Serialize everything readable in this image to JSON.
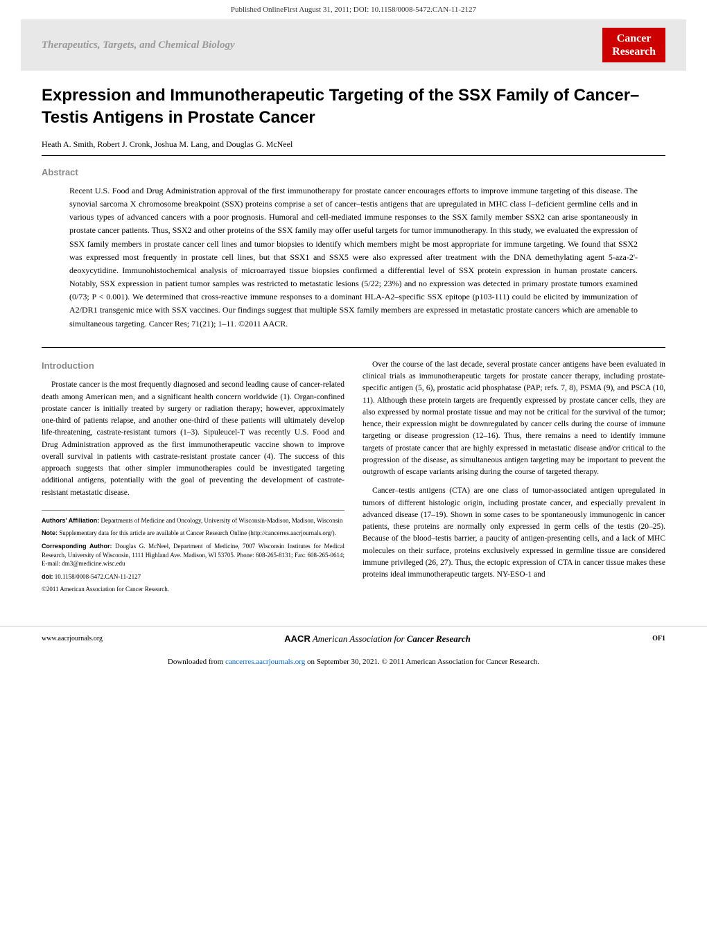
{
  "header": {
    "published_line": "Published OnlineFirst August 31, 2011; DOI: 10.1158/0008-5472.CAN-11-2127"
  },
  "banner": {
    "section": "Therapeutics, Targets, and Chemical Biology",
    "journal_line1": "Cancer",
    "journal_line2": "Research"
  },
  "article": {
    "title": "Expression and Immunotherapeutic Targeting of the SSX Family of Cancer–Testis Antigens in Prostate Cancer",
    "authors": "Heath A. Smith, Robert J. Cronk, Joshua M. Lang, and Douglas G. McNeel",
    "abstract_label": "Abstract",
    "abstract": "Recent U.S. Food and Drug Administration approval of the first immunotherapy for prostate cancer encourages efforts to improve immune targeting of this disease. The synovial sarcoma X chromosome breakpoint (SSX) proteins comprise a set of cancer–testis antigens that are upregulated in MHC class I–deficient germline cells and in various types of advanced cancers with a poor prognosis. Humoral and cell-mediated immune responses to the SSX family member SSX2 can arise spontaneously in prostate cancer patients. Thus, SSX2 and other proteins of the SSX family may offer useful targets for tumor immunotherapy. In this study, we evaluated the expression of SSX family members in prostate cancer cell lines and tumor biopsies to identify which members might be most appropriate for immune targeting. We found that SSX2 was expressed most frequently in prostate cell lines, but that SSX1 and SSX5 were also expressed after treatment with the DNA demethylating agent 5-aza-2'-deoxycytidine. Immunohistochemical analysis of microarrayed tissue biopsies confirmed a differential level of SSX protein expression in human prostate cancers. Notably, SSX expression in patient tumor samples was restricted to metastatic lesions (5/22; 23%) and no expression was detected in primary prostate tumors examined (0/73; P < 0.001). We determined that cross-reactive immune responses to a dominant HLA-A2–specific SSX epitope (p103-111) could be elicited by immunization of A2/DR1 transgenic mice with SSX vaccines. Our findings suggest that multiple SSX family members are expressed in metastatic prostate cancers which are amenable to simultaneous targeting. Cancer Res; 71(21); 1–11. ©2011 AACR.",
    "intro_label": "Introduction",
    "col1_p1": "Prostate cancer is the most frequently diagnosed and second leading cause of cancer-related death among American men, and a significant health concern worldwide (1). Organ-confined prostate cancer is initially treated by surgery or radiation therapy; however, approximately one-third of patients relapse, and another one-third of these patients will ultimately develop life-threatening, castrate-resistant tumors (1–3). Sipuleucel-T was recently U.S. Food and Drug Administration approved as the first immunotherapeutic vaccine shown to improve overall survival in patients with castrate-resistant prostate cancer (4). The success of this approach suggests that other simpler immunotherapies could be investigated targeting additional antigens, potentially with the goal of preventing the development of castrate-resistant metastatic disease.",
    "col2_p1": "Over the course of the last decade, several prostate cancer antigens have been evaluated in clinical trials as immunotherapeutic targets for prostate cancer therapy, including prostate-specific antigen (5, 6), prostatic acid phosphatase (PAP; refs. 7, 8), PSMA (9), and PSCA (10, 11). Although these protein targets are frequently expressed by prostate cancer cells, they are also expressed by normal prostate tissue and may not be critical for the survival of the tumor; hence, their expression might be downregulated by cancer cells during the course of immune targeting or disease progression (12–16). Thus, there remains a need to identify immune targets of prostate cancer that are highly expressed in metastatic disease and/or critical to the progression of the disease, as simultaneous antigen targeting may be important to prevent the outgrowth of escape variants arising during the course of targeted therapy.",
    "col2_p2": "Cancer–testis antigens (CTA) are one class of tumor-associated antigen upregulated in tumors of different histologic origin, including prostate cancer, and especially prevalent in advanced disease (17–19). Shown in some cases to be spontaneously immunogenic in cancer patients, these proteins are normally only expressed in germ cells of the testis (20–25). Because of the blood–testis barrier, a paucity of antigen-presenting cells, and a lack of MHC molecules on their surface, proteins exclusively expressed in germline tissue are considered immune privileged (26, 27). Thus, the ectopic expression of CTA in cancer tissue makes these proteins ideal immunotherapeutic targets. NY-ESO-1 and"
  },
  "footnotes": {
    "affiliation_label": "Authors' Affiliation:",
    "affiliation": " Departments of Medicine and Oncology, University of Wisconsin-Madison, Madison, Wisconsin",
    "note_label": "Note:",
    "note": " Supplementary data for this article are available at Cancer Research Online (http://cancerres.aacrjournals.org/).",
    "corresponding_label": "Corresponding Author:",
    "corresponding": " Douglas G. McNeel, Department of Medicine, 7007 Wisconsin Institutes for Medical Research, University of Wisconsin, 1111 Highland Ave. Madison, WI 53705. Phone: 608-265-8131; Fax: 608-265-0614; E-mail: dm3@medicine.wisc.edu",
    "doi_label": "doi:",
    "doi": " 10.1158/0008-5472.CAN-11-2127",
    "copyright": "©2011 American Association for Cancer Research."
  },
  "footer": {
    "left": "www.aacrjournals.org",
    "center_prefix": "American Association for ",
    "center_bold": "Cancer Research",
    "right": "OF1"
  },
  "download": {
    "prefix": "Downloaded from ",
    "link": "cancerres.aacrjournals.org",
    "suffix": " on September 30, 2021. © 2011 American Association for Cancer Research."
  },
  "colors": {
    "banner_bg": "#e8e8e8",
    "section_gray": "#999999",
    "badge_bg": "#cc0000",
    "badge_text": "#ffffff",
    "label_gray": "#888888",
    "link_blue": "#0066cc"
  }
}
